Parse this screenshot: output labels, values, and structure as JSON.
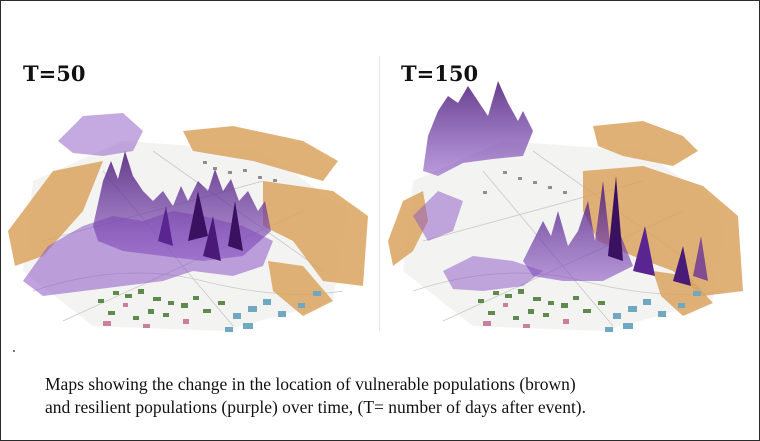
{
  "panels": [
    {
      "label": "T=50"
    },
    {
      "label": "T=150"
    }
  ],
  "caption": {
    "line1": "Maps showing the change in the location of vulnerable populations (brown)",
    "line2": "and resilient populations (purple) over time, (T= number of days after event)."
  },
  "colors": {
    "vulnerable_brown": "#d9a35f",
    "resilient_purple": "#7a3fb0",
    "building_green": "#5e8a4e",
    "building_pink": "#c97fa0",
    "building_blue": "#6fa8c0"
  }
}
